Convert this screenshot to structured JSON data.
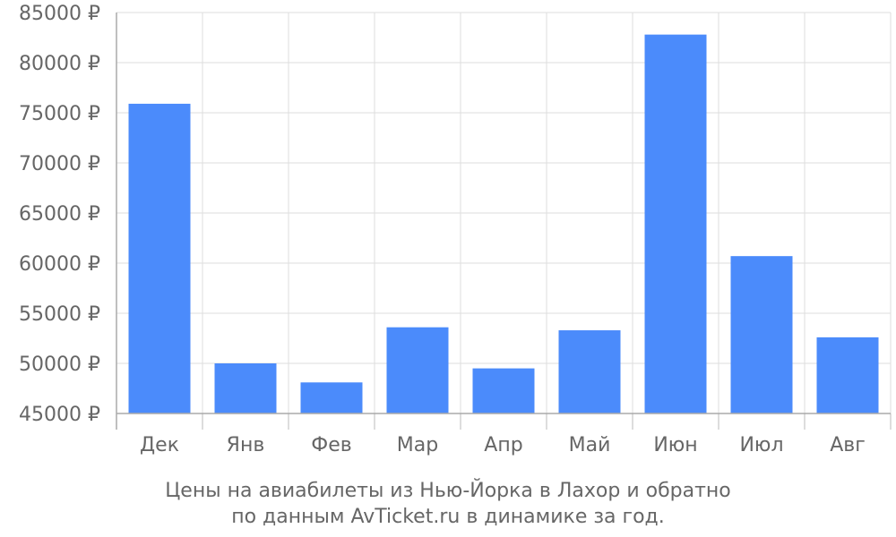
{
  "chart_data": {
    "type": "bar",
    "categories": [
      "Дек",
      "Янв",
      "Фев",
      "Мар",
      "Апр",
      "Май",
      "Июн",
      "Июл",
      "Авг"
    ],
    "values": [
      75900,
      50000,
      48100,
      53600,
      49500,
      53300,
      82800,
      60700,
      52600
    ],
    "ylim": [
      45000,
      85000
    ],
    "yticks": [
      45000,
      50000,
      55000,
      60000,
      65000,
      70000,
      75000,
      80000,
      85000
    ],
    "ytick_labels": [
      "45000 ₽",
      "50000 ₽",
      "55000 ₽",
      "60000 ₽",
      "65000 ₽",
      "70000 ₽",
      "75000 ₽",
      "80000 ₽",
      "85000 ₽"
    ],
    "grid": true,
    "bar_color": "#4b8bfb",
    "caption_lines": [
      "Цены на авиабилеты из Нью-Йорка в Лахор и обратно",
      "по данным AvTicket.ru в динамике за год."
    ]
  }
}
